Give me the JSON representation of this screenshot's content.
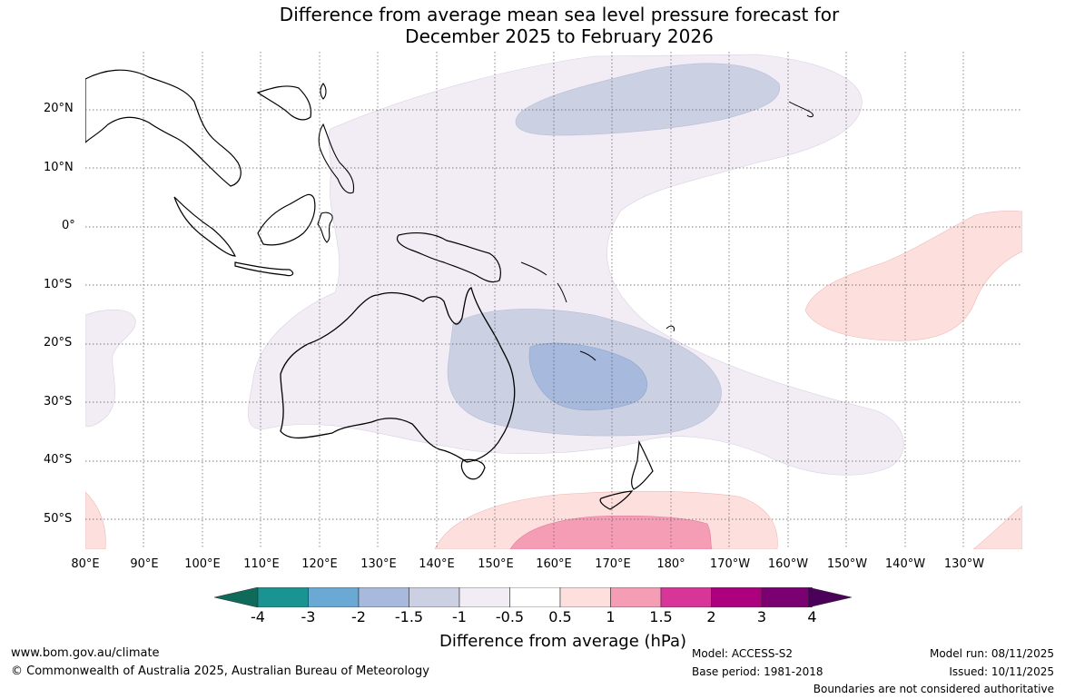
{
  "title": {
    "line1": "Difference from average mean sea level pressure forecast for",
    "line2": "December 2025 to February 2026"
  },
  "map": {
    "region": "Australia and Western Pacific",
    "lat_labels": [
      "20°N",
      "10°N",
      "0°",
      "10°S",
      "20°S",
      "30°S",
      "40°S",
      "50°S"
    ],
    "lon_labels": [
      "80°E",
      "90°E",
      "100°E",
      "110°E",
      "120°E",
      "130°E",
      "140°E",
      "150°E",
      "160°E",
      "170°E",
      "180°",
      "170°W",
      "160°W",
      "150°W",
      "140°W",
      "130°W"
    ]
  },
  "colorbar": {
    "ticks": [
      "-4",
      "-3",
      "-2",
      "-1.5",
      "-1",
      "-0.5",
      "0.5",
      "1",
      "1.5",
      "2",
      "3",
      "4"
    ],
    "colors": [
      "#0e6b5a",
      "#1a9393",
      "#6aa9d3",
      "#a7b9dc",
      "#ccd0e3",
      "#f2edf5",
      "#ffffff",
      "#fde0de",
      "#f69db6",
      "#d83598",
      "#ad007f",
      "#7b0071",
      "#4b0059"
    ],
    "label": "Difference from average (hPa)"
  },
  "footer": {
    "website": "www.bom.gov.au/climate",
    "copyright": "© Commonwealth of Australia 2025, Australian Bureau of Meteorology",
    "model": "Model: ACCESS-S2",
    "base_period": "Base period: 1981-2018",
    "model_run": "Model run: 08/11/2025",
    "issued": "Issued: 10/11/2025",
    "disclaimer": "Boundaries are not considered authoritative"
  }
}
